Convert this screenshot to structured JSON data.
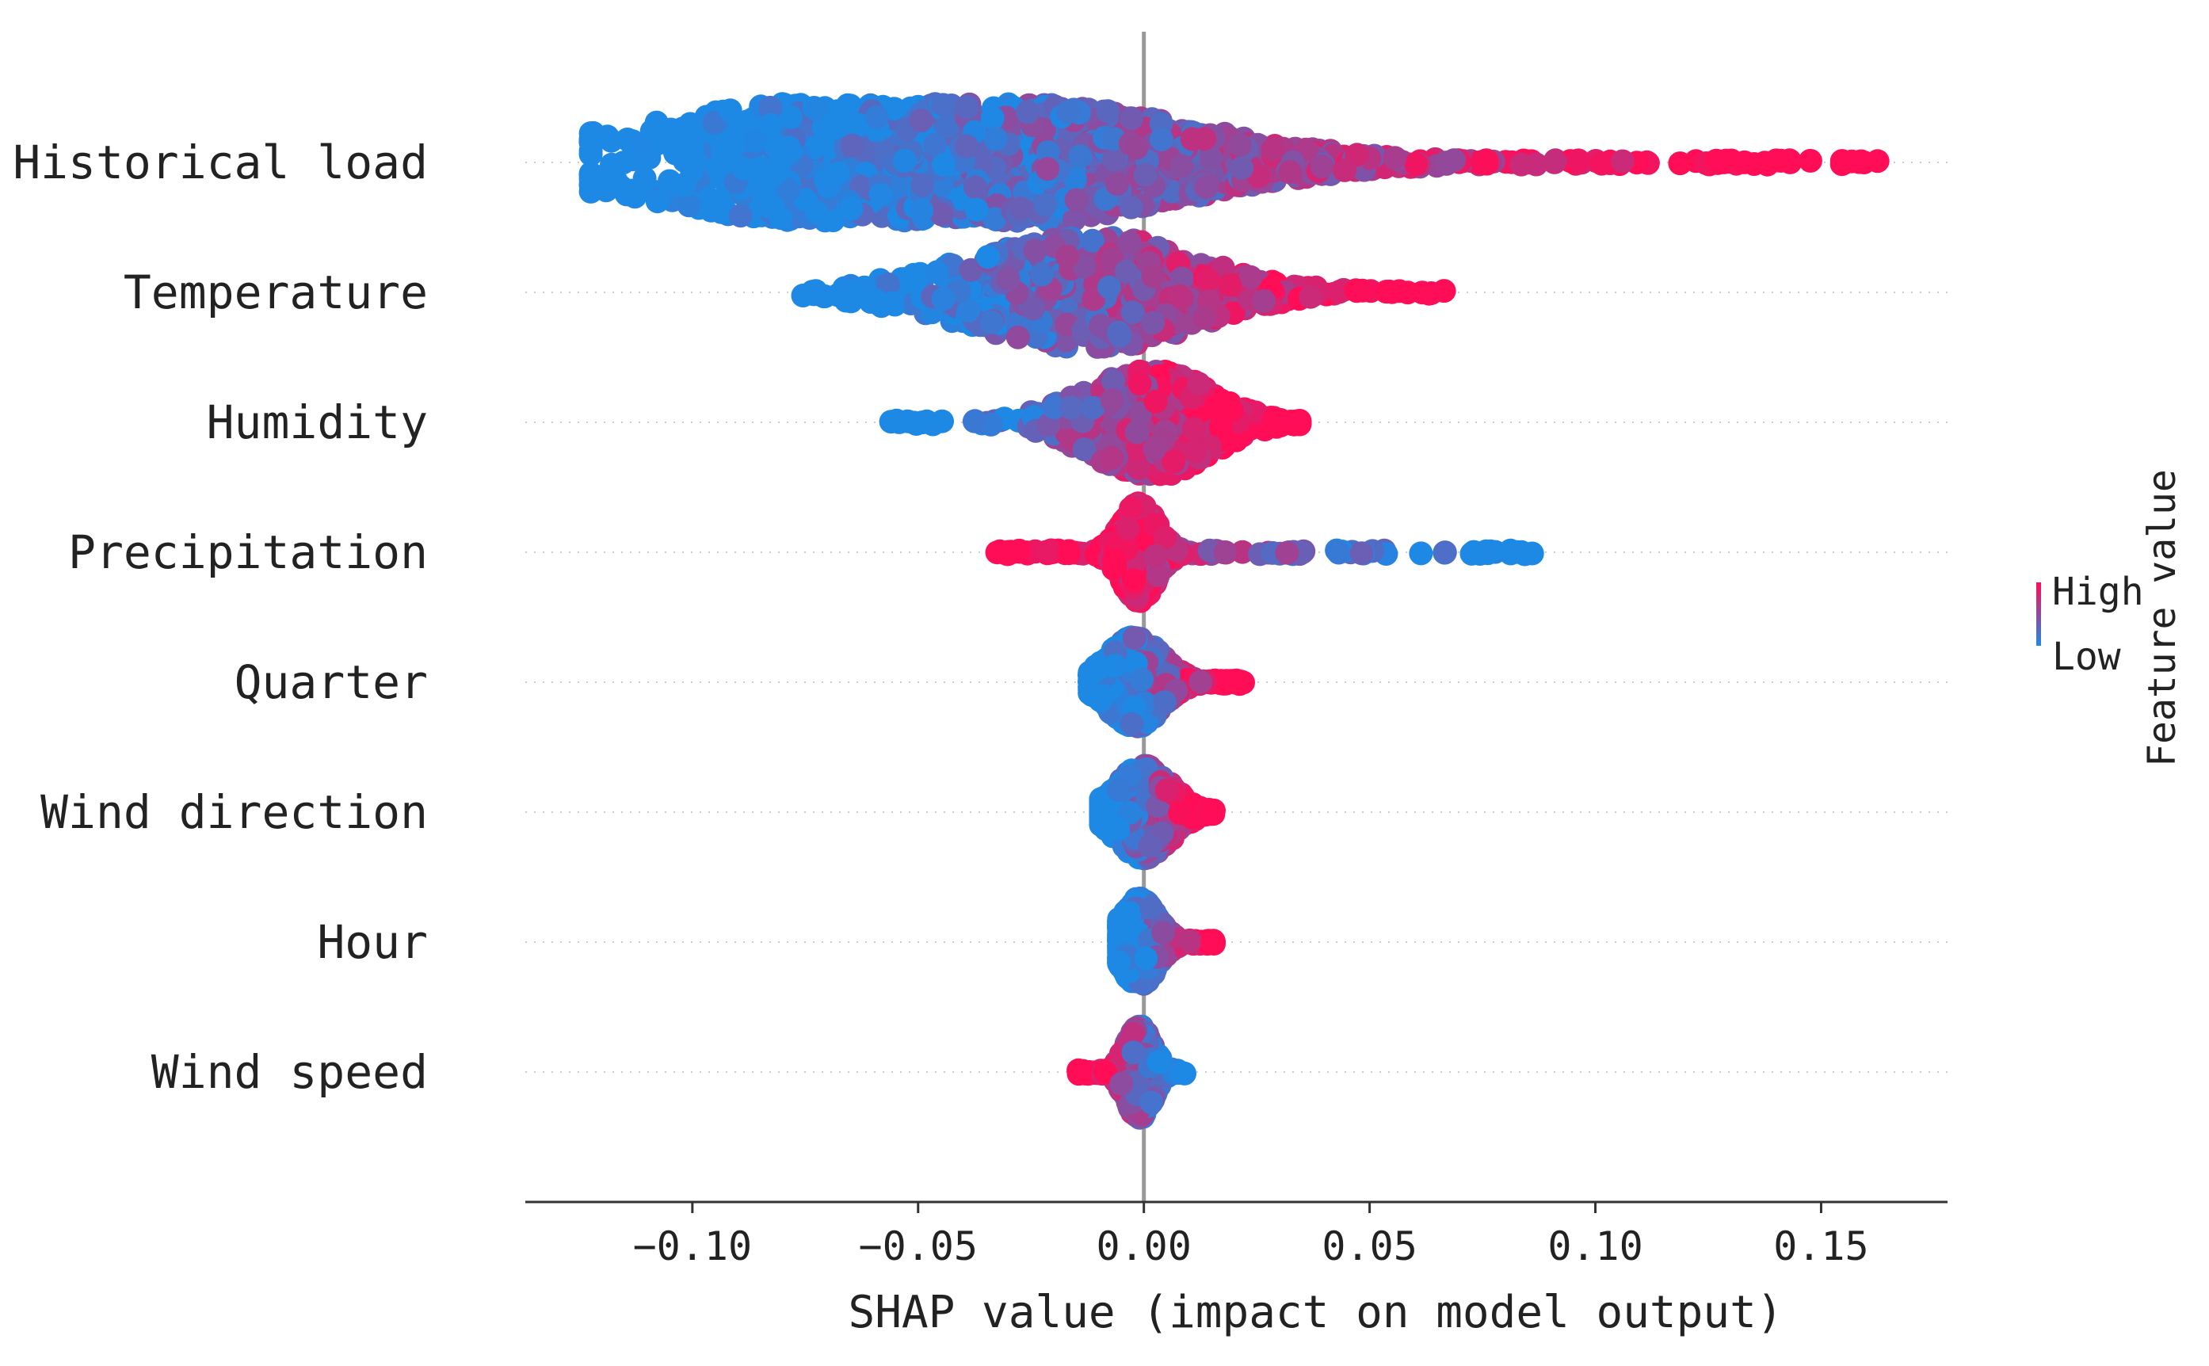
{
  "chart_data": {
    "type": "scatter",
    "subtype": "shap-beeswarm",
    "xlabel": "SHAP value (impact on model output)",
    "xlim": [
      -0.137,
      0.178
    ],
    "xticks": [
      -0.1,
      -0.05,
      0.0,
      0.05,
      0.1,
      0.15
    ],
    "xtick_labels": [
      "−0.10",
      "−0.05",
      "0.00",
      "0.05",
      "0.10",
      "0.15"
    ],
    "zero_line": 0.0,
    "colors": {
      "low": "#1e88e5",
      "high": "#ff0d57",
      "zero_line": "#999999",
      "grid": "#cccccc",
      "axis": "#333333",
      "text": "#222222"
    },
    "colorbar": {
      "title": "Feature value",
      "high_label": "High",
      "low_label": "Low",
      "position": "right"
    },
    "features": [
      {
        "name": "Historical load",
        "min": -0.1225,
        "max": 0.1625,
        "center": -0.03,
        "spread": 0.04,
        "max_height": 0.45,
        "hump": 0.75,
        "dir": 1
      },
      {
        "name": "Temperature",
        "min": -0.0755,
        "max": 0.0665,
        "center": -0.01,
        "spread": 0.022,
        "max_height": 0.42,
        "hump": 0.25,
        "dir": 1
      },
      {
        "name": "Humidity",
        "min": -0.056,
        "max": 0.0345,
        "center": 0.003,
        "spread": 0.012,
        "max_height": 0.4,
        "hump": 0.25,
        "dir": 1
      },
      {
        "name": "Precipitation",
        "min": -0.0325,
        "max": 0.086,
        "center": -0.001,
        "spread": 0.004,
        "max_height": 0.38,
        "hump": 0.0,
        "dir": -1
      },
      {
        "name": "Quarter",
        "min": -0.012,
        "max": 0.022,
        "center": -0.002,
        "spread": 0.006,
        "max_height": 0.35,
        "hump": 0.0,
        "dir": 1
      },
      {
        "name": "Wind direction",
        "min": -0.0095,
        "max": 0.0155,
        "center": 0.0,
        "spread": 0.006,
        "max_height": 0.36,
        "hump": 0.0,
        "dir": 1
      },
      {
        "name": "Hour",
        "min": -0.0055,
        "max": 0.0155,
        "center": -0.001,
        "spread": 0.004,
        "max_height": 0.34,
        "hump": 0.0,
        "dir": 1
      },
      {
        "name": "Wind speed",
        "min": -0.0145,
        "max": 0.009,
        "center": -0.001,
        "spread": 0.002,
        "max_height": 0.36,
        "hump": 0.0,
        "dir": -1
      }
    ]
  }
}
